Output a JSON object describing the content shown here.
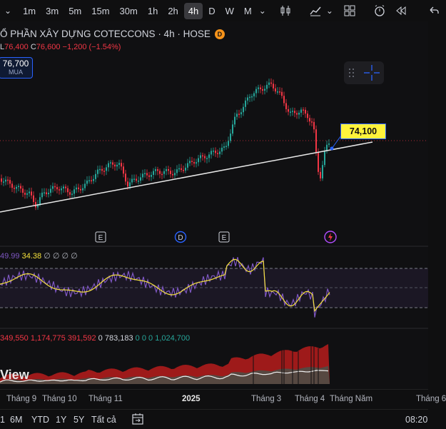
{
  "toolbar": {
    "timeframes": [
      {
        "label": "1m",
        "active": false
      },
      {
        "label": "3m",
        "active": false
      },
      {
        "label": "5m",
        "active": false
      },
      {
        "label": "15m",
        "active": false
      },
      {
        "label": "30m",
        "active": false
      },
      {
        "label": "1h",
        "active": false
      },
      {
        "label": "2h",
        "active": false
      },
      {
        "label": "4h",
        "active": true
      },
      {
        "label": "D",
        "active": false
      },
      {
        "label": "W",
        "active": false
      },
      {
        "label": "M",
        "active": false
      }
    ]
  },
  "symbol": {
    "title": "Ổ PHẦN XÂY DỰNG COTECCONS · 4h · HOSE",
    "badge": "D"
  },
  "ohlc": {
    "low_label": "L",
    "low": "76,400",
    "close_label": "C",
    "close": "76,600",
    "change": "−1,200 (−1.54%)"
  },
  "buy": {
    "price": "76,700",
    "label": "MUA"
  },
  "price_tag": "74,100",
  "event_markers": [
    "E",
    "D",
    "E"
  ],
  "rsi": {
    "v1": "49.99",
    "v2": "34.38",
    "placeholders": "∅ ∅ ∅ ∅"
  },
  "volume": {
    "v1": "349,550",
    "v2": "1,174,775",
    "v3": "391,592",
    "v4": "0",
    "v5": "783,183",
    "v6": "0 0 0",
    "v7": "1,024,700"
  },
  "watermark": "View",
  "xaxis": [
    "Tháng 9",
    "Tháng 10",
    "Tháng 11",
    "2025",
    "Tháng 3",
    "Tháng 4",
    "Tháng Năm",
    "Tháng 6"
  ],
  "bottombar": {
    "ranges": [
      "1",
      "6M",
      "YTD",
      "1Y",
      "5Y",
      "Tất cả"
    ],
    "time": "08:20"
  },
  "colors": {
    "up": "#26a69a",
    "down": "#f23645",
    "rsi": "#7e57c2",
    "signal": "#f5e23b",
    "accent": "#2962ff"
  }
}
